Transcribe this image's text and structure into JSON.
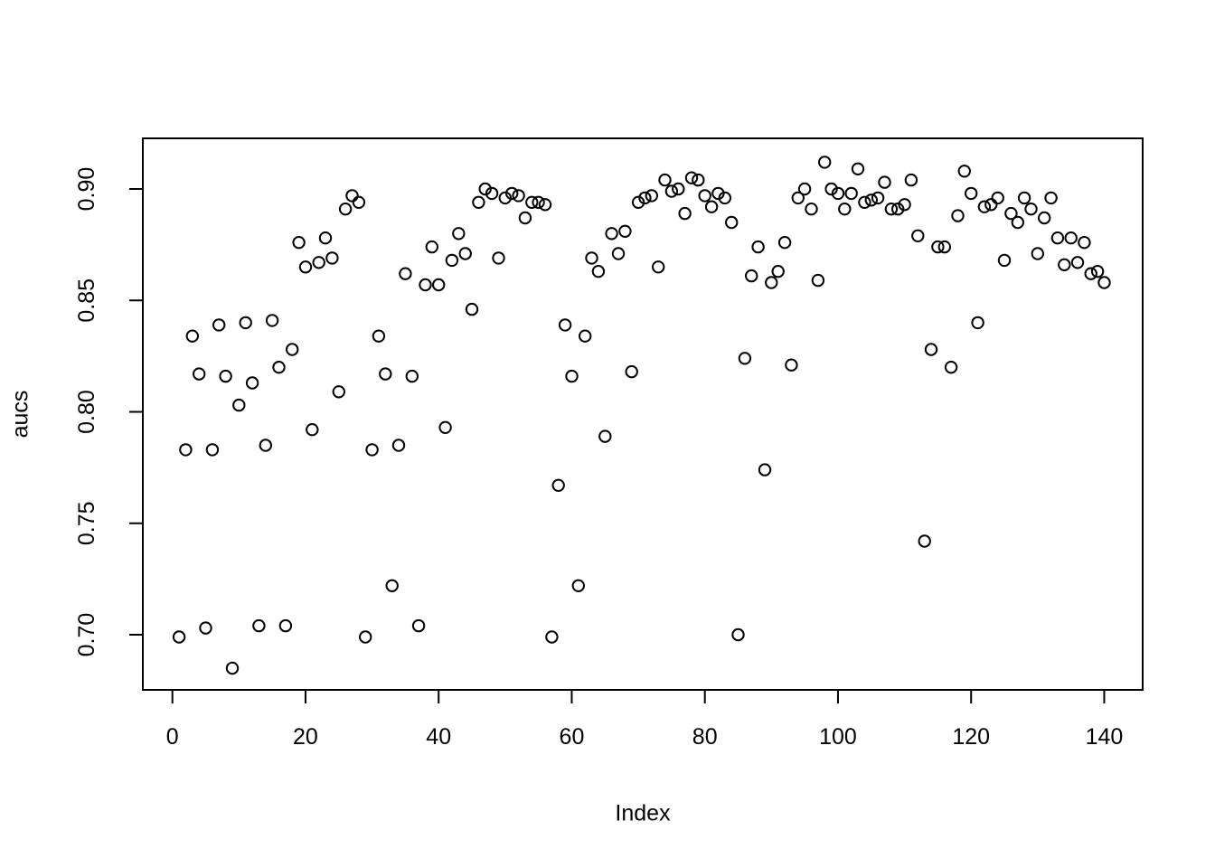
{
  "figure": {
    "background": "#ffffff",
    "foreground": "#000000"
  },
  "chart_data": {
    "type": "scatter",
    "title": "",
    "xlabel": "Index",
    "ylabel": "aucs",
    "marker": "open-circle",
    "grid": false,
    "legend": null,
    "xlim": [
      -4.4,
      145.8
    ],
    "ylim": [
      0.675,
      0.923
    ],
    "x_ticks": [
      0,
      20,
      40,
      60,
      80,
      100,
      120,
      140
    ],
    "y_ticks": [
      "0.70",
      "0.75",
      "0.80",
      "0.85",
      "0.90"
    ],
    "x": [
      1,
      2,
      3,
      4,
      5,
      6,
      7,
      8,
      9,
      10,
      11,
      12,
      13,
      14,
      15,
      16,
      17,
      18,
      19,
      20,
      21,
      22,
      23,
      24,
      25,
      26,
      27,
      28,
      29,
      30,
      31,
      32,
      33,
      34,
      35,
      36,
      37,
      38,
      39,
      40,
      41,
      42,
      43,
      44,
      45,
      46,
      47,
      48,
      49,
      50,
      51,
      52,
      53,
      54,
      55,
      56,
      57,
      58,
      59,
      60,
      61,
      62,
      63,
      64,
      65,
      66,
      67,
      68,
      69,
      70,
      71,
      72,
      73,
      74,
      75,
      76,
      77,
      78,
      79,
      80,
      81,
      82,
      83,
      84,
      85,
      86,
      87,
      88,
      89,
      90,
      91,
      92,
      93,
      94,
      95,
      96,
      97,
      98,
      99,
      100,
      101,
      102,
      103,
      104,
      105,
      106,
      107,
      108,
      109,
      110,
      111,
      112,
      113,
      114,
      115,
      116,
      117,
      118,
      119,
      120,
      121,
      122,
      123,
      124,
      125,
      126,
      127,
      128,
      129,
      130,
      131,
      132,
      133,
      134,
      135,
      136,
      137,
      138,
      139,
      140
    ],
    "values": [
      0.699,
      0.783,
      0.834,
      0.817,
      0.703,
      0.783,
      0.839,
      0.816,
      0.685,
      0.803,
      0.84,
      0.813,
      0.704,
      0.785,
      0.841,
      0.82,
      0.704,
      0.828,
      0.876,
      0.865,
      0.792,
      0.867,
      0.878,
      0.869,
      0.809,
      0.891,
      0.897,
      0.894,
      0.699,
      0.783,
      0.834,
      0.817,
      0.722,
      0.785,
      0.862,
      0.816,
      0.704,
      0.857,
      0.874,
      0.857,
      0.793,
      0.868,
      0.88,
      0.871,
      0.846,
      0.894,
      0.9,
      0.898,
      0.869,
      0.896,
      0.898,
      0.897,
      0.887,
      0.894,
      0.894,
      0.893,
      0.699,
      0.767,
      0.839,
      0.816,
      0.722,
      0.834,
      0.869,
      0.863,
      0.789,
      0.88,
      0.871,
      0.881,
      0.818,
      0.894,
      0.896,
      0.897,
      0.865,
      0.904,
      0.899,
      0.9,
      0.889,
      0.905,
      0.904,
      0.897,
      0.892,
      0.898,
      0.896,
      0.885,
      0.7,
      0.824,
      0.861,
      0.874,
      0.774,
      0.858,
      0.863,
      0.876,
      0.821,
      0.896,
      0.9,
      0.891,
      0.859,
      0.912,
      0.9,
      0.898,
      0.891,
      0.898,
      0.909,
      0.894,
      0.895,
      0.896,
      0.903,
      0.891,
      0.891,
      0.893,
      0.904,
      0.879,
      0.742,
      0.828,
      0.874,
      0.874,
      0.82,
      0.888,
      0.908,
      0.898,
      0.84,
      0.892,
      0.893,
      0.896,
      0.868,
      0.889,
      0.885,
      0.896,
      0.891,
      0.871,
      0.887,
      0.896,
      0.878,
      0.866,
      0.878,
      0.867,
      0.876,
      0.862,
      0.863,
      0.858
    ]
  }
}
